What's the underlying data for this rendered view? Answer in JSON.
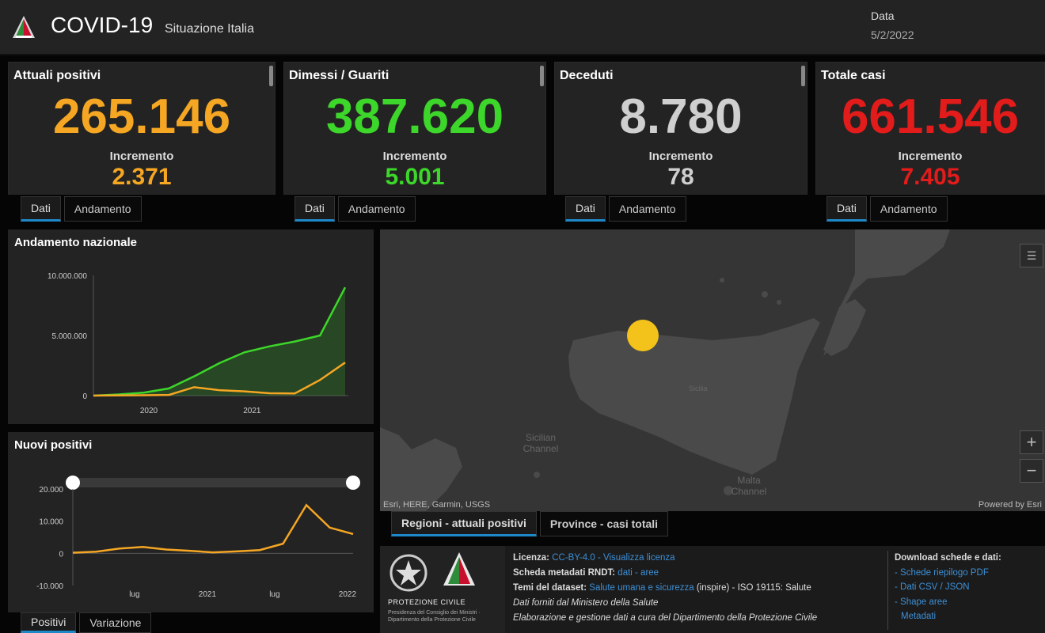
{
  "header": {
    "title": "COVID-19",
    "subtitle": "Situazione Italia",
    "date_label": "Data",
    "date_value": "5/2/2022"
  },
  "kpis": [
    {
      "title": "Attuali positivi",
      "value": "265.146",
      "inc_label": "Incremento",
      "inc_value": "2.371",
      "color": "#f5a623"
    },
    {
      "title": "Dimessi / Guariti",
      "value": "387.620",
      "inc_label": "Incremento",
      "inc_value": "5.001",
      "color": "#3dd62a"
    },
    {
      "title": "Deceduti",
      "value": "8.780",
      "inc_label": "Incremento",
      "inc_value": "78",
      "color": "#cfcfcf"
    },
    {
      "title": "Totale casi",
      "value": "661.546",
      "inc_label": "Incremento",
      "inc_value": "7.405",
      "color": "#e21b1b"
    }
  ],
  "kpi_tabs": {
    "dati": "Dati",
    "andamento": "Andamento"
  },
  "nazionale": {
    "title": "Andamento nazionale",
    "chart_data": {
      "type": "area",
      "title": "Andamento nazionale",
      "x": [
        "2019-11",
        "2020-02",
        "2020-05",
        "2020-08",
        "2020-11",
        "2021-02",
        "2021-05",
        "2021-08",
        "2021-11",
        "2022-01",
        "2022-02"
      ],
      "series": [
        {
          "color": "#3dd62a",
          "values": [
            0,
            100000,
            250000,
            600000,
            1600000,
            2700000,
            3600000,
            4100000,
            4500000,
            5000000,
            9000000
          ]
        },
        {
          "color": "#f5a623",
          "values": [
            0,
            20000,
            30000,
            60000,
            700000,
            450000,
            350000,
            200000,
            180000,
            1300000,
            2750000
          ]
        }
      ],
      "ylim": [
        0,
        10000000
      ],
      "yticks": [
        "10.000.000",
        "5.000.000",
        "0"
      ],
      "xticks": [
        "2020",
        "2021"
      ]
    }
  },
  "nuovi": {
    "title": "Nuovi positivi",
    "chart_data": {
      "type": "line",
      "title": "Nuovi positivi",
      "x": [
        "2020-06",
        "2020-09",
        "2020-11",
        "2021-01",
        "2021-03",
        "2021-05",
        "2021-07",
        "2021-09",
        "2021-11",
        "2021-12",
        "2022-01",
        "2022-01b",
        "2022-02"
      ],
      "series": [
        {
          "color": "#f5a623",
          "values": [
            200,
            500,
            1500,
            2000,
            1200,
            800,
            300,
            600,
            1000,
            3000,
            15000,
            8000,
            6000
          ]
        }
      ],
      "ylim": [
        -10000,
        20000
      ],
      "yticks": [
        "20.000",
        "10.000",
        "0",
        "-10.000"
      ],
      "xticks": [
        "lug",
        "2021",
        "lug",
        "2022"
      ]
    }
  },
  "nuovi_tabs": {
    "positivi": "Positivi",
    "variazione": "Variazione"
  },
  "map": {
    "attribution": "Esri, HERE, Garmin, USGS",
    "powered": "Powered by Esri",
    "labels": {
      "sicily": "Sicilia",
      "sicilian_channel": "Sicilian Channel",
      "malta_channel": "Malta Channel",
      "zoom_in": "+",
      "zoom_out": "−"
    },
    "tabs": {
      "regioni": "Regioni - attuali positivi",
      "province": "Province - casi totali"
    }
  },
  "footer": {
    "licenza_label": "Licenza:",
    "licenza_link": "CC-BY-4.0 - Visualizza licenza",
    "metadati_label": "Scheda metadati RNDT:",
    "metadati_link": "dati - aree",
    "temi_label": "Temi del dataset:",
    "temi_link": "Salute umana e sicurezza",
    "temi_rest": "(inspire) - ISO 19115: Salute",
    "dati_forniti": "Dati forniti dal Ministero della Salute",
    "elaborazione": "Elaborazione e gestione dati a cura del Dipartimento della Protezione Civile",
    "download_title": "Download schede e dati:",
    "download_links": [
      "- Schede riepilogo PDF",
      "- Dati CSV / JSON",
      "- Shape aree",
      "Metadati"
    ],
    "emblem_text": "PROTEZIONE CIVILE",
    "emblem_subtext": "Presidenza del Consiglio dei Ministri · Dipartimento della Protezione Civile"
  }
}
